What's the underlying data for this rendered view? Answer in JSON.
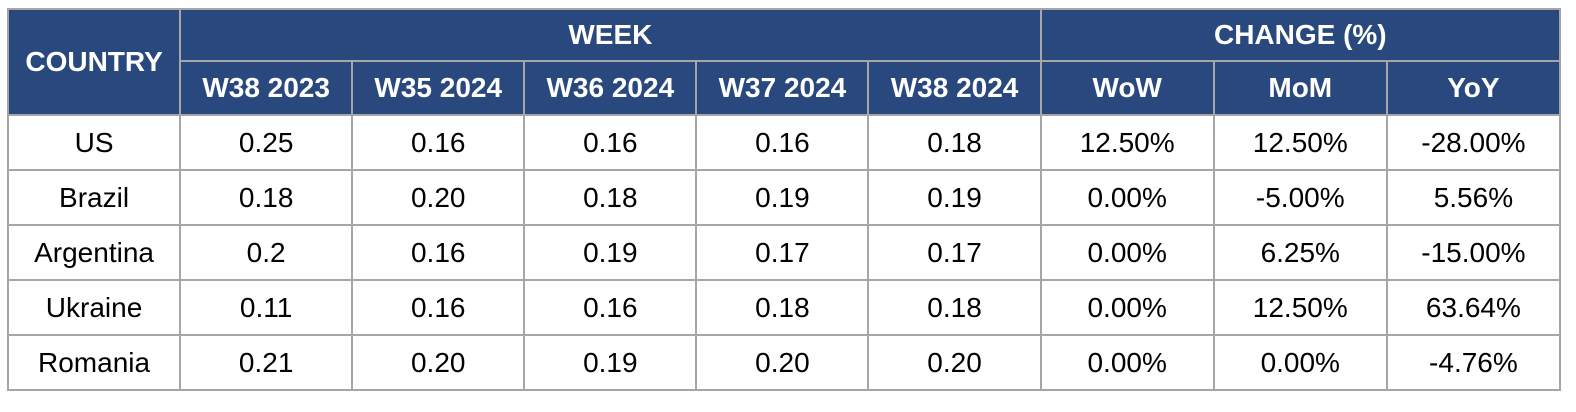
{
  "colors": {
    "header_bg": "#29487d",
    "header_text": "#ffffff",
    "border": "#a6a6a6",
    "cell_text": "#000000",
    "page_bg": "#ffffff"
  },
  "table": {
    "header": {
      "country": "COUNTRY",
      "week_group": "WEEK",
      "change_group": "CHANGE (%)",
      "week_cols": [
        "W38 2023",
        "W35 2024",
        "W36 2024",
        "W37 2024",
        "W38 2024"
      ],
      "change_cols": [
        "WoW",
        "MoM",
        "YoY"
      ]
    },
    "rows": [
      {
        "country": "US",
        "weeks": [
          "0.25",
          "0.16",
          "0.16",
          "0.16",
          "0.18"
        ],
        "changes": [
          "12.50%",
          "12.50%",
          "-28.00%"
        ]
      },
      {
        "country": "Brazil",
        "weeks": [
          "0.18",
          "0.20",
          "0.18",
          "0.19",
          "0.19"
        ],
        "changes": [
          "0.00%",
          "-5.00%",
          "5.56%"
        ]
      },
      {
        "country": "Argentina",
        "weeks": [
          "0.2",
          "0.16",
          "0.19",
          "0.17",
          "0.17"
        ],
        "changes": [
          "0.00%",
          "6.25%",
          "-15.00%"
        ]
      },
      {
        "country": "Ukraine",
        "weeks": [
          "0.11",
          "0.16",
          "0.16",
          "0.18",
          "0.18"
        ],
        "changes": [
          "0.00%",
          "12.50%",
          "63.64%"
        ]
      },
      {
        "country": "Romania",
        "weeks": [
          "0.21",
          "0.20",
          "0.19",
          "0.20",
          "0.20"
        ],
        "changes": [
          "0.00%",
          "0.00%",
          "-4.76%"
        ]
      }
    ]
  },
  "chart_data": {
    "type": "table",
    "title": "",
    "column_groups": [
      {
        "label": "COUNTRY",
        "span": 1
      },
      {
        "label": "WEEK",
        "span": 5
      },
      {
        "label": "CHANGE (%)",
        "span": 3
      }
    ],
    "columns": [
      "COUNTRY",
      "W38 2023",
      "W35 2024",
      "W36 2024",
      "W37 2024",
      "W38 2024",
      "WoW",
      "MoM",
      "YoY"
    ],
    "rows": [
      [
        "US",
        0.25,
        0.16,
        0.16,
        0.16,
        0.18,
        "12.50%",
        "12.50%",
        "-28.00%"
      ],
      [
        "Brazil",
        0.18,
        0.2,
        0.18,
        0.19,
        0.19,
        "0.00%",
        "-5.00%",
        "5.56%"
      ],
      [
        "Argentina",
        0.2,
        0.16,
        0.19,
        0.17,
        0.17,
        "0.00%",
        "6.25%",
        "-15.00%"
      ],
      [
        "Ukraine",
        0.11,
        0.16,
        0.16,
        0.18,
        0.18,
        "0.00%",
        "12.50%",
        "63.64%"
      ],
      [
        "Romania",
        0.21,
        0.2,
        0.19,
        0.2,
        0.2,
        "0.00%",
        "0.00%",
        "-4.76%"
      ]
    ]
  }
}
